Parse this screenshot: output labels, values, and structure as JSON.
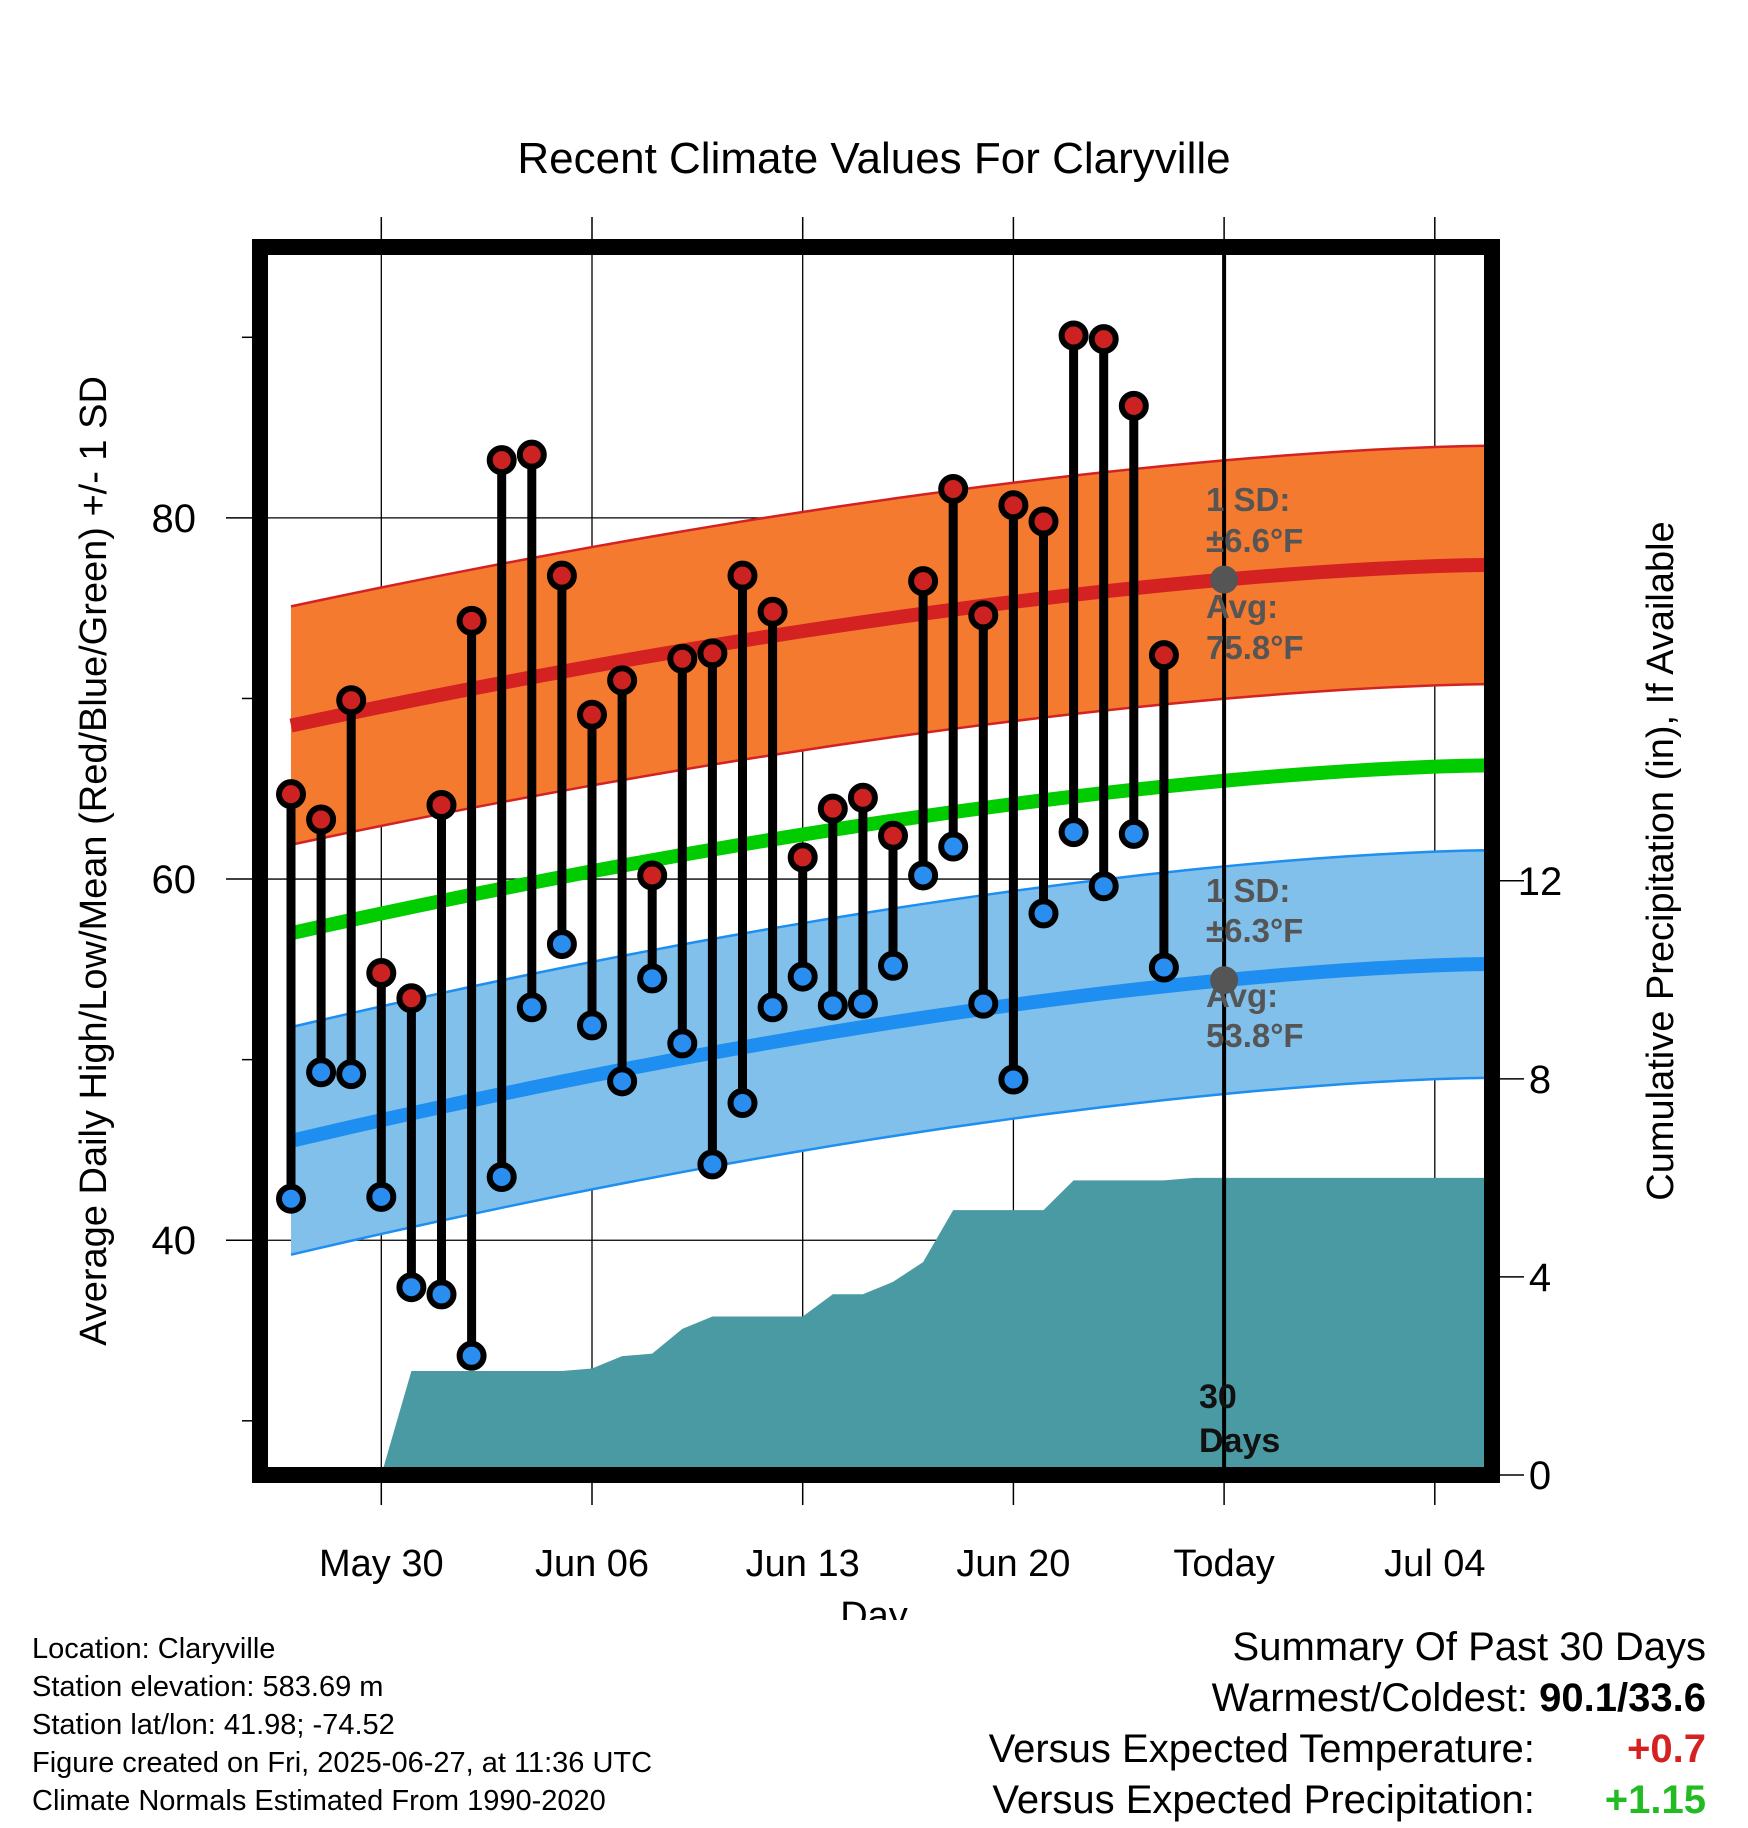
{
  "chart_data": {
    "type": "line",
    "title": "Recent Climate Values For Claryville",
    "xlabel": "Day",
    "ylabel_left": "Average Daily High/Low/Mean (Red/Blue/Green) +/- 1 SD",
    "ylabel_right": "Cumulative Precipitation (in), If Available",
    "x_tick_labels": [
      "May 30",
      "Jun 06",
      "Jun 13",
      "Jun 20",
      "Today",
      "Jul 04"
    ],
    "y_left_ticks": [
      "40",
      "60",
      "80"
    ],
    "y_right_ticks": [
      "0",
      "4",
      "8",
      "12"
    ],
    "ylim_left": [
      27,
      95
    ],
    "ylim_right": [
      0,
      24.8
    ],
    "grid": true,
    "days": [
      "May 27",
      "May 28",
      "May 29",
      "May 30",
      "May 31",
      "Jun 01",
      "Jun 02",
      "Jun 03",
      "Jun 04",
      "Jun 05",
      "Jun 06",
      "Jun 07",
      "Jun 08",
      "Jun 09",
      "Jun 10",
      "Jun 11",
      "Jun 12",
      "Jun 13",
      "Jun 14",
      "Jun 15",
      "Jun 16",
      "Jun 17",
      "Jun 18",
      "Jun 19",
      "Jun 20",
      "Jun 21",
      "Jun 22",
      "Jun 23",
      "Jun 24",
      "Jun 25",
      "Jun 26",
      "Jun 27",
      "Jun 28",
      "Jun 29",
      "Jun 30",
      "Jul 01",
      "Jul 02",
      "Jul 03",
      "Jul 04",
      "Jul 05",
      "Jul 06"
    ],
    "daily_high": [
      64.7,
      63.3,
      69.9,
      54.8,
      53.4,
      64.1,
      74.3,
      83.2,
      83.5,
      76.8,
      69.1,
      71.0,
      60.2,
      72.2,
      72.5,
      76.8,
      74.8,
      61.2,
      63.9,
      64.5,
      62.4,
      76.5,
      81.6,
      74.6,
      80.7,
      79.8,
      90.1,
      89.9,
      86.2,
      72.4
    ],
    "daily_low": [
      42.3,
      49.3,
      49.2,
      42.4,
      37.4,
      37.0,
      33.6,
      43.5,
      52.9,
      56.4,
      51.9,
      48.8,
      54.5,
      50.9,
      44.2,
      47.6,
      52.9,
      54.6,
      53.0,
      53.1,
      55.2,
      60.2,
      61.8,
      53.1,
      48.9,
      58.1,
      62.6,
      59.6,
      62.5,
      55.1
    ],
    "series": [
      {
        "name": "Avg High",
        "color": "#d42222",
        "start": 68.5,
        "end": 77.4,
        "sd": 6.6
      },
      {
        "name": "Avg Low",
        "color": "#1e8ff0",
        "start": 45.5,
        "end": 55.3,
        "sd": 6.3
      },
      {
        "name": "Avg Mean",
        "color": "#00cc00",
        "start": 57.0,
        "end": 66.3
      }
    ],
    "cumulative_precipitation": [
      0,
      0,
      0,
      0,
      2.1,
      2.1,
      2.1,
      2.1,
      2.1,
      2.1,
      2.15,
      2.4,
      2.45,
      2.95,
      3.2,
      3.2,
      3.2,
      3.2,
      3.65,
      3.65,
      3.9,
      4.3,
      5.35,
      5.35,
      5.35,
      5.35,
      5.95,
      5.95,
      5.95,
      5.95,
      6.0,
      6.0,
      6.0,
      6.0,
      6.0,
      6.0,
      6.0,
      6.0,
      6.0,
      6.0,
      6.0
    ],
    "annotations": {
      "high_sd": "1 SD:",
      "high_sd_value": "±6.6°F",
      "high_avg": "Avg:",
      "high_avg_value": "75.8°F",
      "low_sd": "1 SD:",
      "low_sd_value": "±6.3°F",
      "low_avg": "Avg:",
      "low_avg_value": "53.8°F",
      "days_count": "30",
      "days_word": "Days"
    },
    "colors": {
      "high_band": "#f47a30",
      "high_line": "#d42222",
      "low_band": "#80c0ea",
      "low_line": "#1e8ff0",
      "mean_line": "#00cc00",
      "precip": "#4a9aa4",
      "high_dot": "#cc2222",
      "low_dot": "#2a8ef0",
      "annotation": "#555555"
    }
  },
  "footer": {
    "location": "Location: Claryville",
    "elevation": "Station elevation: 583.69 m",
    "latlon": "Station lat/lon: 41.98; -74.52",
    "created": "Figure created on Fri, 2025-06-27, at 11:36 UTC",
    "normals": "Climate Normals Estimated From 1990-2020"
  },
  "summary": {
    "title": "Summary Of Past 30 Days",
    "warm_cold_label": "Warmest/Coldest:",
    "warm_cold_value": "90.1/33.6",
    "temp_label": "Versus Expected Temperature:",
    "temp_value": "+0.7",
    "precip_label": "Versus Expected Precipitation:",
    "precip_value": "+1.15"
  }
}
